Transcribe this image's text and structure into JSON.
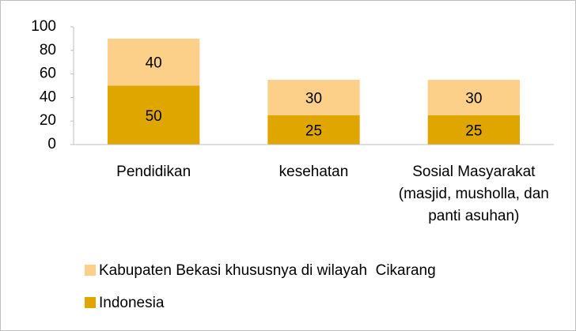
{
  "chart_data": {
    "type": "stacked_bar",
    "categories": [
      "Pendidikan",
      "kesehatan",
      "Sosial Masyarakat (masjid, musholla, dan panti asuhan)"
    ],
    "series": [
      {
        "name": "Indonesia",
        "color": "#dfa600",
        "values": [
          50,
          25,
          25
        ]
      },
      {
        "name": "Kabupaten Bekasi khususnya di wilayah  Cikarang",
        "color": "#fdd089",
        "values": [
          40,
          30,
          30
        ]
      }
    ],
    "ylim": [
      0,
      100
    ],
    "yticks": [
      0,
      20,
      40,
      60,
      80,
      100
    ],
    "grid": false,
    "legend": "bottom"
  }
}
